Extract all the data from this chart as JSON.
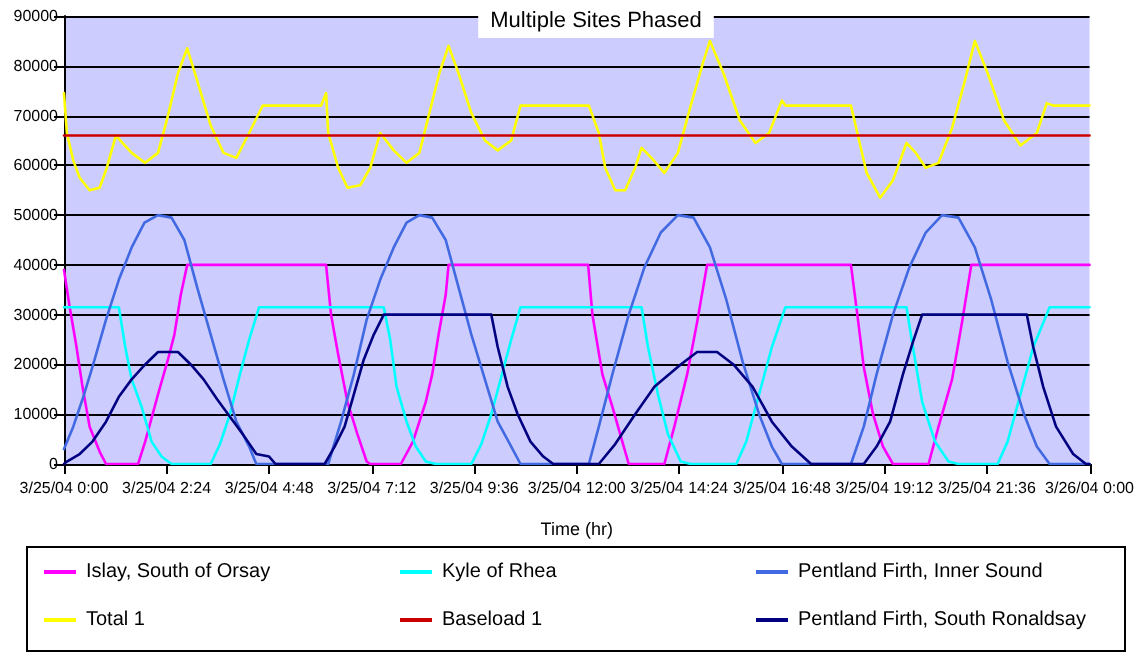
{
  "chart_data": {
    "type": "line",
    "title": "Multiple Sites Phased",
    "xlabel": "Time (hr)",
    "xlim": [
      "--03-25T00:00",
      "--03-26T00:00"
    ],
    "xticks": [
      {
        "value": "--03-25T00:00",
        "label": "3/25/04 0:00"
      },
      {
        "value": "--03-25T02:24",
        "label": "3/25/04 2:24"
      },
      {
        "value": "--03-25T04:48",
        "label": "3/25/04 4:48"
      },
      {
        "value": "--03-25T07:12",
        "label": "3/25/04 7:12"
      },
      {
        "value": "--03-25T09:36",
        "label": "3/25/04 9:36"
      },
      {
        "value": "--03-25T12:00",
        "label": "3/25/04 12:00"
      },
      {
        "value": "--03-25T14:24",
        "label": "3/25/04 14:24"
      },
      {
        "value": "--03-25T16:48",
        "label": "3/25/04 16:48"
      },
      {
        "value": "--03-25T19:12",
        "label": "3/25/04 19:12"
      },
      {
        "value": "--03-25T21:36",
        "label": "3/25/04 21:36"
      },
      {
        "value": "--03-26T00:00",
        "label": "3/26/04 0:00"
      }
    ],
    "ylim": [
      0,
      90000
    ],
    "yticks": [
      0,
      10000,
      20000,
      30000,
      40000,
      50000,
      60000,
      70000,
      80000,
      90000
    ],
    "grid": "y",
    "legend": "bottom",
    "marker": "none",
    "line_style": "solid",
    "series": [
      {
        "name": "Islay, South of Orsay",
        "color": "#ff00ff",
        "x": [
          "--03-25T00:00",
          "--03-25T00:08",
          "--03-25T00:17",
          "--03-25T00:26",
          "--03-25T00:36",
          "--03-25T00:50",
          "--03-25T00:59",
          "--03-25T01:44",
          "--03-25T01:54",
          "--03-25T02:12",
          "--03-25T02:26",
          "--03-25T02:35",
          "--03-25T02:44",
          "--03-25T02:53",
          "--03-25T06:08",
          "--03-25T06:15",
          "--03-25T06:25",
          "--03-25T06:38",
          "--03-25T06:52",
          "--03-25T07:05",
          "--03-25T07:10",
          "--03-25T07:53",
          "--03-25T08:10",
          "--03-25T08:28",
          "--03-25T08:37",
          "--03-25T08:46",
          "--03-25T08:56",
          "--03-25T09:00",
          "--03-25T12:16",
          "--03-25T12:22",
          "--03-25T12:36",
          "--03-25T12:50",
          "--03-25T13:04",
          "--03-25T13:13",
          "--03-25T14:03",
          "--03-25T14:17",
          "--03-25T14:35",
          "--03-25T14:49",
          "--03-25T15:03",
          "--03-25T18:25",
          "--03-25T18:34",
          "--03-25T18:43",
          "--03-25T18:56",
          "--03-25T19:10",
          "--03-25T19:24",
          "--03-25T20:14",
          "--03-25T20:28",
          "--03-25T20:47",
          "--03-25T21:01",
          "--03-25T21:14",
          "--03-26T00:00"
        ],
        "values": [
          39000,
          31500,
          24000,
          15500,
          7500,
          2500,
          0,
          0,
          4500,
          14000,
          21000,
          26000,
          34000,
          40000,
          40000,
          30000,
          22000,
          12500,
          6000,
          500,
          0,
          0,
          4500,
          12500,
          18000,
          26000,
          34000,
          40000,
          40000,
          30000,
          18000,
          11500,
          4500,
          0,
          0,
          7500,
          18000,
          28500,
          40000,
          40000,
          30000,
          19500,
          10000,
          3500,
          0,
          0,
          7500,
          17000,
          28500,
          40000,
          40000
        ]
      },
      {
        "name": "Kyle of Rhea",
        "color": "#00ffff",
        "x": [
          "--03-25T00:00",
          "--03-25T01:17",
          "--03-25T01:26",
          "--03-25T01:35",
          "--03-25T01:49",
          "--03-25T02:03",
          "--03-25T02:17",
          "--03-25T02:31",
          "--03-25T03:26",
          "--03-25T03:39",
          "--03-25T03:53",
          "--03-25T04:07",
          "--03-25T04:20",
          "--03-25T04:34",
          "--03-25T07:29",
          "--03-25T07:38",
          "--03-25T07:47",
          "--03-25T08:01",
          "--03-25T08:14",
          "--03-25T08:28",
          "--03-25T08:42",
          "--03-25T09:32",
          "--03-25T09:46",
          "--03-25T10:00",
          "--03-25T10:14",
          "--03-25T10:28",
          "--03-25T10:41",
          "--03-25T13:31",
          "--03-25T13:40",
          "--03-25T13:54",
          "--03-25T14:08",
          "--03-25T14:26",
          "--03-25T14:40",
          "--03-25T15:44",
          "--03-25T15:58",
          "--03-25T16:16",
          "--03-25T16:34",
          "--03-25T16:53",
          "--03-25T19:43",
          "--03-25T19:52",
          "--03-25T20:05",
          "--03-25T20:23",
          "--03-25T20:42",
          "--03-25T20:56",
          "--03-25T21:51",
          "--03-25T22:05",
          "--03-25T22:23",
          "--03-25T22:41",
          "--03-25T23:04",
          "--03-26T00:00"
        ],
        "values": [
          31500,
          31500,
          23500,
          17000,
          11500,
          4500,
          1500,
          0,
          0,
          4000,
          10000,
          18000,
          25000,
          31500,
          31500,
          25000,
          15500,
          8500,
          3500,
          500,
          0,
          0,
          4000,
          10000,
          17500,
          25000,
          31500,
          31500,
          23500,
          14000,
          6000,
          500,
          0,
          0,
          4500,
          14000,
          23500,
          31500,
          31500,
          23500,
          12500,
          4500,
          500,
          0,
          0,
          4500,
          14000,
          23500,
          31500,
          31500
        ]
      },
      {
        "name": "Pentland Firth, Inner Sound",
        "color": "#4169e1",
        "x": [
          "--03-25T00:00",
          "--03-25T00:13",
          "--03-25T00:26",
          "--03-25T00:40",
          "--03-25T00:59",
          "--03-25T01:17",
          "--03-25T01:35",
          "--03-25T01:53",
          "--03-25T02:12",
          "--03-25T02:31",
          "--03-25T02:49",
          "--03-25T03:07",
          "--03-25T03:26",
          "--03-25T03:44",
          "--03-25T04:02",
          "--03-25T04:20",
          "--03-25T04:30",
          "--03-25T06:11",
          "--03-25T06:29",
          "--03-25T06:47",
          "--03-25T07:05",
          "--03-25T07:24",
          "--03-25T07:43",
          "--03-25T08:01",
          "--03-25T08:19",
          "--03-25T08:37",
          "--03-25T08:56",
          "--03-25T09:14",
          "--03-25T09:32",
          "--03-25T09:51",
          "--03-25T10:09",
          "--03-25T10:28",
          "--03-25T10:41",
          "--03-25T12:17",
          "--03-25T12:31",
          "--03-25T12:50",
          "--03-25T13:13",
          "--03-25T13:35",
          "--03-25T13:58",
          "--03-25T14:22",
          "--03-25T14:44",
          "--03-25T15:07",
          "--03-25T15:30",
          "--03-25T15:53",
          "--03-25T16:16",
          "--03-25T16:34",
          "--03-25T16:48",
          "--03-25T18:25",
          "--03-25T18:43",
          "--03-25T19:01",
          "--03-25T19:24",
          "--03-25T19:47",
          "--03-25T20:10",
          "--03-25T20:33",
          "--03-25T20:56",
          "--03-25T21:19",
          "--03-25T21:42",
          "--03-25T22:05",
          "--03-25T22:28",
          "--03-25T22:46",
          "--03-25T23:04",
          "--03-26T00:00"
        ],
        "values": [
          3000,
          7500,
          13000,
          19500,
          29000,
          37000,
          43500,
          48500,
          50000,
          49500,
          45000,
          35500,
          26000,
          17000,
          8500,
          3500,
          0,
          0,
          8500,
          18000,
          29000,
          37000,
          43500,
          48500,
          50000,
          49500,
          45000,
          35500,
          26000,
          17000,
          8500,
          3500,
          0,
          0,
          7500,
          18000,
          30000,
          39500,
          46500,
          50000,
          49500,
          43500,
          33000,
          20500,
          10000,
          3500,
          0,
          0,
          7500,
          18000,
          30000,
          39500,
          46500,
          50000,
          49500,
          43500,
          33000,
          20500,
          10000,
          3500,
          0,
          0
        ]
      },
      {
        "name": "Total 1",
        "color": "#ffff00",
        "x": [
          "--03-25T00:00",
          "--03-25T00:04",
          "--03-25T00:13",
          "--03-25T00:22",
          "--03-25T00:36",
          "--03-25T00:50",
          "--03-25T00:59",
          "--03-25T01:13",
          "--03-25T01:22",
          "--03-25T01:35",
          "--03-25T01:54",
          "--03-25T02:12",
          "--03-25T02:26",
          "--03-25T02:40",
          "--03-25T02:53",
          "--03-25T03:07",
          "--03-25T03:26",
          "--03-25T03:44",
          "--03-25T04:02",
          "--03-25T04:20",
          "--03-25T04:39",
          "--03-25T06:01",
          "--03-25T06:08",
          "--03-25T06:11",
          "--03-25T06:25",
          "--03-25T06:38",
          "--03-25T06:56",
          "--03-25T07:10",
          "--03-25T07:24",
          "--03-25T07:43",
          "--03-25T08:01",
          "--03-25T08:19",
          "--03-25T08:33",
          "--03-25T08:47",
          "--03-25T09:00",
          "--03-25T09:14",
          "--03-25T09:32",
          "--03-25T09:51",
          "--03-25T10:09",
          "--03-25T10:28",
          "--03-25T10:41",
          "--03-25T12:17",
          "--03-25T12:31",
          "--03-25T12:40",
          "--03-25T12:54",
          "--03-25T13:08",
          "--03-25T13:22",
          "--03-25T13:31",
          "--03-25T13:45",
          "--03-25T14:03",
          "--03-25T14:22",
          "--03-25T14:40",
          "--03-25T14:58",
          "--03-25T15:07",
          "--03-25T15:26",
          "--03-25T15:49",
          "--03-25T16:11",
          "--03-25T16:30",
          "--03-25T16:48",
          "--03-25T16:53",
          "--03-25T18:25",
          "--03-25T18:34",
          "--03-25T18:47",
          "--03-25T19:06",
          "--03-25T19:24",
          "--03-25T19:43",
          "--03-25T19:56",
          "--03-25T20:10",
          "--03-25T20:28",
          "--03-25T20:47",
          "--03-25T21:05",
          "--03-25T21:19",
          "--03-25T21:37",
          "--03-25T22:00",
          "--03-25T22:23",
          "--03-25T22:46",
          "--03-25T23:00",
          "--03-25T23:09",
          "--03-26T00:00"
        ],
        "values": [
          74500,
          66500,
          61000,
          57500,
          55000,
          55500,
          59000,
          66000,
          64500,
          62500,
          60500,
          62500,
          70000,
          78500,
          83500,
          77000,
          68000,
          62500,
          61500,
          66500,
          72000,
          72000,
          74500,
          66500,
          59500,
          55500,
          56000,
          59500,
          66500,
          63000,
          60500,
          62500,
          70500,
          78500,
          84000,
          78500,
          70500,
          65000,
          63000,
          65000,
          72000,
          72000,
          66500,
          59500,
          55000,
          55000,
          59500,
          63500,
          61500,
          58500,
          62500,
          72000,
          81000,
          85000,
          78500,
          69000,
          64500,
          66500,
          73000,
          72000,
          72000,
          66500,
          58500,
          53500,
          57000,
          64500,
          62500,
          59500,
          60500,
          67500,
          77000,
          85000,
          78500,
          69000,
          64000,
          66500,
          72500,
          72000,
          72000
        ]
      },
      {
        "name": "Baseload 1",
        "color": "#cc0000",
        "x": [
          "--03-25T00:00",
          "--03-26T00:00"
        ],
        "values": [
          66000,
          66000
        ]
      },
      {
        "name": "Pentland Firth, South Ronaldsay",
        "color": "#000080",
        "x": [
          "--03-25T00:00",
          "--03-25T00:04",
          "--03-25T00:22",
          "--03-25T00:40",
          "--03-25T00:59",
          "--03-25T01:17",
          "--03-25T01:35",
          "--03-25T01:54",
          "--03-25T02:12",
          "--03-25T02:40",
          "--03-25T02:58",
          "--03-25T03:16",
          "--03-25T03:35",
          "--03-25T03:53",
          "--03-25T04:11",
          "--03-25T04:30",
          "--03-25T04:48",
          "--03-25T04:57",
          "--03-25T06:06",
          "--03-25T06:20",
          "--03-25T06:34",
          "--03-25T06:47",
          "--03-25T07:01",
          "--03-25T07:15",
          "--03-25T07:29",
          "--03-25T10:00",
          "--03-25T10:09",
          "--03-25T10:23",
          "--03-25T10:37",
          "--03-25T10:55",
          "--03-25T11:13",
          "--03-25T11:27",
          "--03-25T12:31",
          "--03-25T12:54",
          "--03-25T13:22",
          "--03-25T13:49",
          "--03-25T14:26",
          "--03-25T14:49",
          "--03-25T15:17",
          "--03-25T15:40",
          "--03-25T16:07",
          "--03-25T16:34",
          "--03-25T17:02",
          "--03-25T17:29",
          "--03-25T18:43",
          "--03-25T19:01",
          "--03-25T19:20",
          "--03-25T19:38",
          "--03-25T19:52",
          "--03-25T20:05",
          "--03-25T22:32",
          "--03-25T22:41",
          "--03-25T22:55",
          "--03-25T23:13",
          "--03-25T23:37",
          "--03-25T23:55",
          "--03-26T00:00"
        ],
        "values": [
          0,
          500,
          2000,
          4500,
          8500,
          13500,
          17000,
          20000,
          22500,
          22500,
          20000,
          17000,
          13000,
          9500,
          6000,
          2000,
          1500,
          0,
          0,
          3500,
          7500,
          14000,
          21000,
          26000,
          30000,
          30000,
          23500,
          15500,
          10000,
          4500,
          1500,
          0,
          0,
          4000,
          10000,
          15500,
          20000,
          22500,
          22500,
          20000,
          15500,
          8500,
          3500,
          0,
          0,
          3500,
          8500,
          18000,
          24500,
          30000,
          30000,
          23500,
          15500,
          7500,
          2000,
          0,
          0
        ]
      }
    ]
  }
}
